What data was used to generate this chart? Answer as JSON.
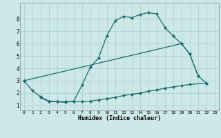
{
  "xlabel": "Humidex (Indice chaleur)",
  "bg_color": "#cde8e8",
  "grid_color": "#aacccc",
  "line_color": "#1a6b6b",
  "xlim": [
    -0.5,
    23.5
  ],
  "ylim": [
    0.6,
    9.3
  ],
  "xticks": [
    0,
    1,
    2,
    3,
    4,
    5,
    6,
    7,
    8,
    9,
    10,
    11,
    12,
    13,
    14,
    15,
    16,
    17,
    18,
    19,
    20,
    21,
    22,
    23
  ],
  "yticks": [
    1,
    2,
    3,
    4,
    5,
    6,
    7,
    8
  ],
  "curve1_x": [
    0,
    1,
    2,
    3,
    4,
    5,
    6,
    7,
    8,
    9,
    10,
    11,
    12,
    13,
    14,
    15,
    16,
    17,
    18,
    19,
    20,
    21
  ],
  "curve1_y": [
    3.0,
    2.2,
    1.7,
    1.35,
    1.3,
    1.25,
    1.35,
    2.65,
    4.1,
    4.85,
    6.65,
    7.85,
    8.2,
    8.1,
    8.35,
    8.5,
    8.4,
    7.3,
    6.6,
    6.0,
    5.15,
    3.4
  ],
  "curve2_x": [
    0,
    19,
    20,
    21,
    22
  ],
  "curve2_y": [
    3.0,
    6.0,
    5.15,
    3.4,
    2.8
  ],
  "curve3_x": [
    2,
    3,
    4,
    5,
    6,
    7,
    8,
    9,
    10,
    11,
    12,
    13,
    14,
    15,
    16,
    17,
    18,
    19,
    20,
    22
  ],
  "curve3_y": [
    1.65,
    1.3,
    1.3,
    1.3,
    1.3,
    1.3,
    1.35,
    1.45,
    1.55,
    1.65,
    1.8,
    1.9,
    2.0,
    2.15,
    2.25,
    2.4,
    2.5,
    2.6,
    2.7,
    2.8
  ]
}
